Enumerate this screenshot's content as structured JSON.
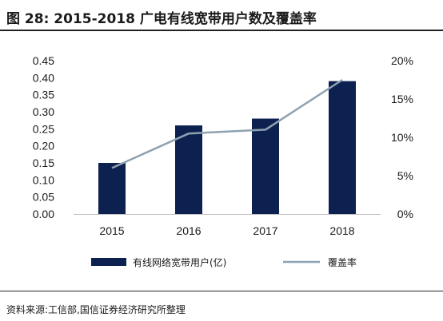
{
  "header": {
    "title": "图 28:  2015-2018 广电有线宽带用户数及覆盖率"
  },
  "footer": {
    "source": "资料来源:工信部,国信证券经济研究所整理"
  },
  "colors": {
    "bar": "#0d2150",
    "line": "#8ea2b1"
  },
  "chart_data": {
    "type": "bar",
    "categories": [
      "2015",
      "2016",
      "2017",
      "2018"
    ],
    "series": [
      {
        "name": "有线网络宽带用户(亿)",
        "type": "bar",
        "axis": "left",
        "values": [
          0.15,
          0.26,
          0.28,
          0.39
        ]
      },
      {
        "name": "覆盖率",
        "type": "line",
        "axis": "right",
        "values": [
          6.0,
          10.5,
          11.0,
          17.5
        ]
      }
    ],
    "y_left": {
      "ylim": [
        0,
        0.45
      ],
      "ticks": [
        "0.00",
        "0.05",
        "0.10",
        "0.15",
        "0.20",
        "0.25",
        "0.30",
        "0.35",
        "0.40",
        "0.45"
      ]
    },
    "y_right": {
      "ylim": [
        0,
        20
      ],
      "ticks": [
        "0%",
        "5%",
        "10%",
        "15%",
        "20%"
      ]
    },
    "legend": {
      "bar_label": "有线网络宽带用户(亿)",
      "line_label": "覆盖率",
      "position": "bottom"
    },
    "grid": false
  }
}
